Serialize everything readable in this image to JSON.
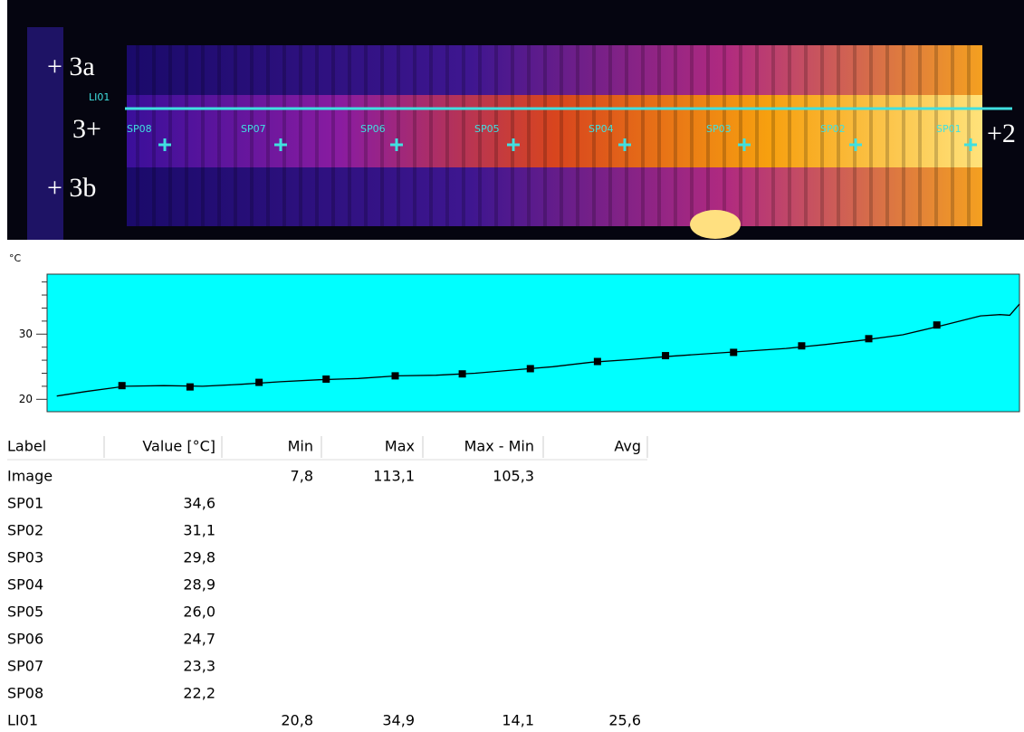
{
  "thermal_image": {
    "labels": [
      "+ 3a",
      "3+",
      "+ 3b",
      "+2"
    ],
    "line_label": "LI01",
    "spots": [
      "SP08",
      "SP07",
      "SP06",
      "SP05",
      "SP04",
      "SP03",
      "SP02",
      "SP01"
    ]
  },
  "chart_data": {
    "type": "line",
    "y_label": "°C",
    "ylim": [
      18.1,
      39.2
    ],
    "yticks": [
      20,
      30
    ],
    "minor_yticks": [
      22,
      24,
      26,
      28,
      32,
      34,
      36,
      38
    ],
    "xlim": [
      0,
      100
    ],
    "series": [
      {
        "color": "#000000",
        "x": [
          1,
          4,
          8,
          12,
          16,
          20,
          24,
          28,
          32,
          36,
          40,
          44,
          48,
          52,
          56,
          60,
          64,
          68,
          72,
          76,
          80,
          84,
          88,
          92,
          96,
          98,
          99,
          100
        ],
        "values": [
          20.5,
          21.2,
          22.0,
          22.1,
          22.0,
          22.3,
          22.7,
          23.0,
          23.2,
          23.6,
          23.7,
          24.0,
          24.5,
          25.0,
          25.7,
          26.1,
          26.6,
          27.0,
          27.4,
          27.8,
          28.4,
          29.1,
          29.9,
          31.3,
          32.8,
          33.0,
          32.9,
          34.6
        ]
      },
      {
        "color": "#000000",
        "marker": "square",
        "x": [
          7.7,
          14.7,
          21.8,
          28.7,
          35.8,
          42.7,
          49.7,
          56.6,
          63.6,
          70.6,
          77.6,
          84.5,
          91.5
        ],
        "values": [
          22.1,
          21.9,
          22.6,
          23.1,
          23.6,
          23.9,
          24.7,
          25.8,
          26.7,
          27.2,
          28.2,
          29.3,
          31.4
        ]
      }
    ]
  },
  "table": {
    "header": [
      "Label",
      "Value [°C]",
      "Min",
      "Max",
      "Max - Min",
      "Avg"
    ],
    "rows": [
      [
        "Image",
        null,
        "7,8",
        "113,1",
        "105,3",
        null
      ],
      [
        "SP01",
        "34,6",
        null,
        null,
        null,
        null
      ],
      [
        "SP02",
        "31,1",
        null,
        null,
        null,
        null
      ],
      [
        "SP03",
        "29,8",
        null,
        null,
        null,
        null
      ],
      [
        "SP04",
        "28,9",
        null,
        null,
        null,
        null
      ],
      [
        "SP05",
        "26,0",
        null,
        null,
        null,
        null
      ],
      [
        "SP06",
        "24,7",
        null,
        null,
        null,
        null
      ],
      [
        "SP07",
        "23,3",
        null,
        null,
        null,
        null
      ],
      [
        "SP08",
        "22,2",
        null,
        null,
        null,
        null
      ],
      [
        "LI01",
        null,
        "20,8",
        "34,9",
        "14,1",
        "25,6"
      ]
    ]
  }
}
